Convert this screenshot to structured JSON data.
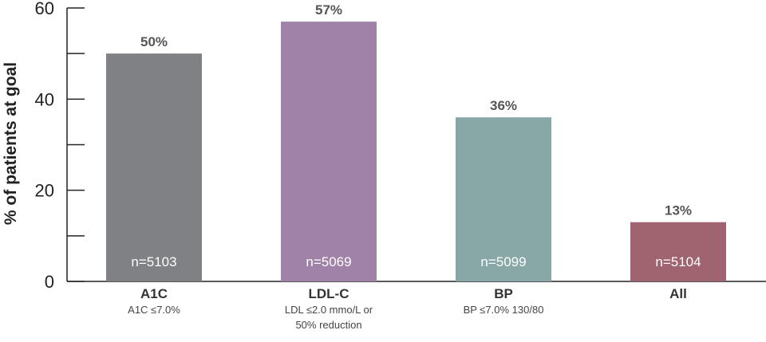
{
  "chart_data": {
    "type": "bar",
    "ylabel": "% of patients at goal",
    "ylim": [
      0,
      60
    ],
    "yticks": [
      0,
      20,
      40,
      60
    ],
    "yminor": [
      10,
      30,
      50
    ],
    "grid": false,
    "categories": [
      {
        "label": "A1C",
        "sub": [
          "A1C ≤7.0%"
        ],
        "value": 50,
        "value_label": "50%",
        "n": "n=5103",
        "color": "#808184"
      },
      {
        "label": "LDL-C",
        "sub": [
          "LDL ≤2.0 mmo/L or",
          "50% reduction"
        ],
        "value": 57,
        "value_label": "57%",
        "n": "n=5069",
        "color": "#a082a8"
      },
      {
        "label": "BP",
        "sub": [
          "BP ≤7.0% 130/80"
        ],
        "value": 36,
        "value_label": "36%",
        "n": "n=5099",
        "color": "#87a8a7"
      },
      {
        "label": "All",
        "sub": [],
        "value": 13,
        "value_label": "13%",
        "n": "n=5104",
        "color": "#a06370"
      }
    ]
  }
}
